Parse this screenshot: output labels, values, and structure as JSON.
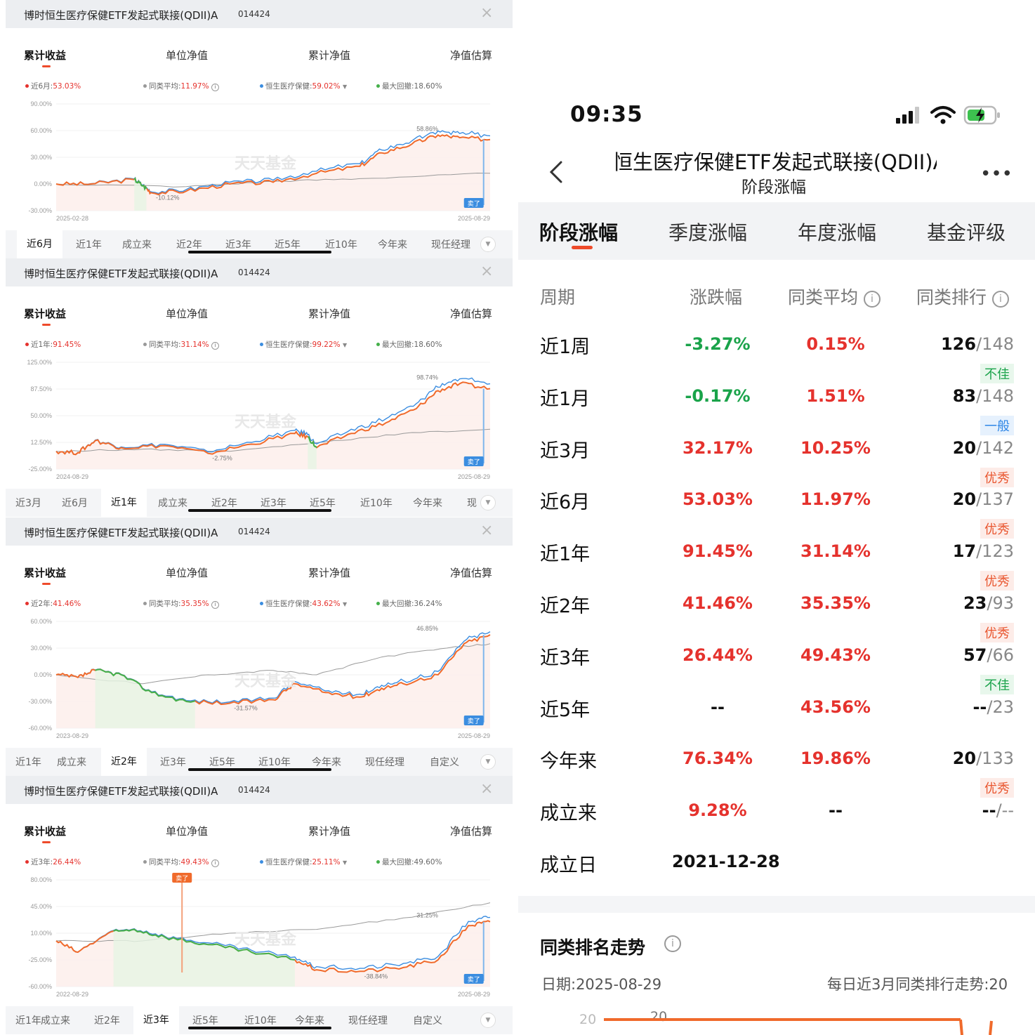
{
  "panels": [
    {
      "name": "博时恒生医疗保健ETF发起式联接(QDII)A",
      "code": "014424",
      "close": "×",
      "metric_tabs": [
        "累计收益",
        "单位净值",
        "累计净值",
        "净值估算"
      ],
      "legend": {
        "fund_label": "近6月:",
        "fund_value": "53.03%",
        "avg_label": "同类平均:",
        "avg_value": "11.97%",
        "index_label": "恒生医疗保健:",
        "index_value": "59.02%",
        "dd_label": "最大回撤:",
        "dd_value": "18.60%"
      },
      "y_ticks": [
        "90.00%",
        "60.00%",
        "30.00%",
        "0.00%",
        "-30.00%"
      ],
      "start_date": "2025-02-28",
      "end_date": "2025-08-29",
      "hi_label": "58.86%",
      "lo_label": "-10.12%",
      "watermark": "天天基金",
      "sell_tag": "卖了",
      "range_tabs": [
        "近6月",
        "近1年",
        "成立来",
        "近2年",
        "近3年",
        "近5年",
        "近10年",
        "今年来",
        "现任经理"
      ],
      "range_active": "近6月"
    },
    {
      "name": "博时恒生医疗保健ETF发起式联接(QDII)A",
      "code": "014424",
      "close": "×",
      "metric_tabs": [
        "累计收益",
        "单位净值",
        "累计净值",
        "净值估算"
      ],
      "legend": {
        "fund_label": "近1年:",
        "fund_value": "91.45%",
        "avg_label": "同类平均:",
        "avg_value": "31.14%",
        "index_label": "恒生医疗保健:",
        "index_value": "99.22%",
        "dd_label": "最大回撤:",
        "dd_value": "18.60%"
      },
      "y_ticks": [
        "125.00%",
        "87.50%",
        "50.00%",
        "12.50%",
        "-25.00%"
      ],
      "start_date": "2024-08-29",
      "end_date": "2025-08-29",
      "hi_label": "98.74%",
      "lo_label": "-2.75%",
      "watermark": "天天基金",
      "sell_tag": "卖了",
      "range_tabs": [
        "近3月",
        "近6月",
        "近1年",
        "成立来",
        "近2年",
        "近3年",
        "近5年",
        "近10年",
        "今年来",
        "现"
      ],
      "range_active": "近1年"
    },
    {
      "name": "博时恒生医疗保健ETF发起式联接(QDII)A",
      "code": "014424",
      "close": "×",
      "metric_tabs": [
        "累计收益",
        "单位净值",
        "累计净值",
        "净值估算"
      ],
      "legend": {
        "fund_label": "近2年:",
        "fund_value": "41.46%",
        "avg_label": "同类平均:",
        "avg_value": "35.35%",
        "index_label": "恒生医疗保健:",
        "index_value": "43.62%",
        "dd_label": "最大回撤:",
        "dd_value": "36.24%"
      },
      "y_ticks": [
        "60.00%",
        "30.00%",
        "0.00%",
        "-30.00%",
        "-60.00%"
      ],
      "start_date": "2023-08-29",
      "end_date": "2025-08-29",
      "hi_label": "46.85%",
      "lo_label": "-31.57%",
      "watermark": "天天基金",
      "sell_tag": "卖了",
      "range_tabs": [
        "近1年",
        "成立来",
        "近2年",
        "近3年",
        "近5年",
        "近10年",
        "今年来",
        "现任经理",
        "自定义"
      ],
      "range_active": "近2年"
    },
    {
      "name": "博时恒生医疗保健ETF发起式联接(QDII)A",
      "code": "014424",
      "close": "×",
      "metric_tabs": [
        "累计收益",
        "单位净值",
        "累计净值",
        "净值估算"
      ],
      "legend": {
        "fund_label": "近3年:",
        "fund_value": "26.44%",
        "avg_label": "同类平均:",
        "avg_value": "49.43%",
        "index_label": "恒生医疗保健:",
        "index_value": "25.11%",
        "dd_label": "最大回撤:",
        "dd_value": "49.60%"
      },
      "y_ticks": [
        "80.00%",
        "45.00%",
        "10.00%",
        "-25.00%",
        "-60.00%"
      ],
      "start_date": "2022-08-29",
      "end_date": "2025-08-29",
      "hi_label": "31.25%",
      "lo_label": "-38.84%",
      "watermark": "天天基金",
      "sell_tag": "卖了",
      "range_tabs": [
        "近1年",
        "成立来",
        "近2年",
        "近3年",
        "近5年",
        "近10年",
        "今年来",
        "现任经理",
        "自定义"
      ],
      "range_active": "近3年"
    }
  ],
  "phone": {
    "time": "09:35",
    "nav_title": "博时恒生医疗保健ETF发起式联接(QDII)A",
    "nav_subtitle": "阶段涨幅",
    "more": "•••",
    "tabs": [
      "阶段涨幅",
      "季度涨幅",
      "年度涨幅",
      "基金评级"
    ],
    "headers": [
      "周期",
      "涨跌幅",
      "同类平均",
      "同类排行"
    ],
    "rows": [
      {
        "period": "近1周",
        "change": "-3.27%",
        "dir": "down",
        "avg": "0.15%",
        "rank": "126",
        "total": "/148",
        "badge": "不佳",
        "badge_type": "bad"
      },
      {
        "period": "近1月",
        "change": "-0.17%",
        "dir": "down",
        "avg": "1.51%",
        "rank": "83",
        "total": "/148",
        "badge": "一般",
        "badge_type": "mid"
      },
      {
        "period": "近3月",
        "change": "32.17%",
        "dir": "up",
        "avg": "10.25%",
        "rank": "20",
        "total": "/142",
        "badge": "优秀",
        "badge_type": "good"
      },
      {
        "period": "近6月",
        "change": "53.03%",
        "dir": "up",
        "avg": "11.97%",
        "rank": "20",
        "total": "/137",
        "badge": "优秀",
        "badge_type": "good"
      },
      {
        "period": "近1年",
        "change": "91.45%",
        "dir": "up",
        "avg": "31.14%",
        "rank": "17",
        "total": "/123",
        "badge": "优秀",
        "badge_type": "good"
      },
      {
        "period": "近2年",
        "change": "41.46%",
        "dir": "up",
        "avg": "35.35%",
        "rank": "23",
        "total": "/93",
        "badge": "优秀",
        "badge_type": "good"
      },
      {
        "period": "近3年",
        "change": "26.44%",
        "dir": "up",
        "avg": "49.43%",
        "rank": "57",
        "total": "/66",
        "badge": "不佳",
        "badge_type": "bad"
      },
      {
        "period": "近5年",
        "change": "--",
        "dir": "none",
        "avg": "43.56%",
        "rank": "--",
        "total": "/23",
        "badge": "",
        "badge_type": ""
      },
      {
        "period": "今年来",
        "change": "76.34%",
        "dir": "up",
        "avg": "19.86%",
        "rank": "20",
        "total": "/133",
        "badge": "优秀",
        "badge_type": "good"
      },
      {
        "period": "成立来",
        "change": "9.28%",
        "dir": "up",
        "avg": "--",
        "rank": "--",
        "total": "/--",
        "badge": "",
        "badge_type": ""
      }
    ],
    "inception_label": "成立日",
    "inception_date": "2021-12-28",
    "trend_title": "同类排名走势",
    "trend_date_label": "日期:2025-08-29",
    "trend_desc": "每日近3月同类排行走势:20",
    "trend_axis_value": "20",
    "trend_point_value": "20"
  },
  "colors": {
    "fund_line": "#f06a2b",
    "index_line": "#3b8de0",
    "avg_line": "#9a9a9a",
    "drawdown": "#45b04a",
    "up_red": "#e5322d",
    "down_green": "#1aa34a"
  }
}
